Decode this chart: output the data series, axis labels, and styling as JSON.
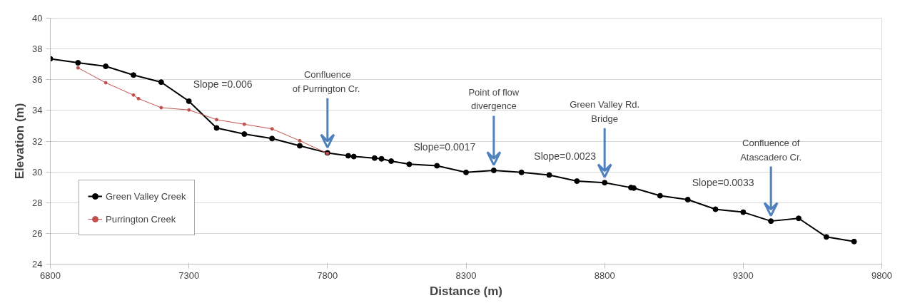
{
  "chart_data": {
    "type": "line",
    "xlabel": "Distance (m)",
    "ylabel": "Elevation (m)",
    "xlim": [
      6800,
      9800
    ],
    "xticks": [
      6800,
      7300,
      7800,
      8300,
      8800,
      9300,
      9800
    ],
    "ylim": [
      24,
      40
    ],
    "yticks": [
      24,
      26,
      28,
      30,
      32,
      34,
      36,
      38,
      40
    ],
    "grid": "y",
    "legend": "bottom left",
    "marker": "circle",
    "line_style": "solid",
    "series": [
      {
        "name": "Green Valley Creek",
        "color": "#000000",
        "x": [
          6800,
          6900,
          7000,
          7100,
          7200,
          7300,
          7400,
          7500,
          7600,
          7700,
          7800,
          7875,
          7895,
          7970,
          7995,
          8030,
          8095,
          8195,
          8300,
          8400,
          8500,
          8600,
          8700,
          8800,
          8895,
          8905,
          9000,
          9100,
          9200,
          9300,
          9400,
          9500,
          9600,
          9700
        ],
        "values": [
          37.36,
          37.1,
          36.87,
          36.3,
          35.84,
          34.6,
          32.86,
          32.46,
          32.17,
          31.7,
          31.24,
          31.05,
          31.0,
          30.9,
          30.85,
          30.7,
          30.5,
          30.4,
          29.97,
          30.1,
          29.97,
          29.8,
          29.4,
          29.3,
          28.98,
          28.95,
          28.45,
          28.2,
          27.57,
          27.38,
          26.8,
          26.98,
          25.77,
          25.47
        ]
      },
      {
        "name": "Purrington Creek",
        "color": "#c0504d",
        "x": [
          6900,
          7000,
          7100,
          7118,
          7200,
          7300,
          7400,
          7500,
          7600,
          7700,
          7800
        ],
        "values": [
          36.77,
          35.8,
          35.0,
          34.77,
          34.18,
          34.03,
          33.4,
          33.1,
          32.8,
          32.03,
          31.2
        ]
      }
    ],
    "annotations": [
      {
        "text": "Slope =0.006",
        "x": 7300,
        "y": 34.6
      },
      {
        "text": "Slope=0.0017",
        "x": 8095,
        "y": 30.5
      },
      {
        "text": "Slope=0.0023",
        "x": 8530,
        "y": 29.91
      },
      {
        "text": "Slope=0.0033",
        "x": 9100,
        "y": 28.2
      },
      {
        "text": "Confluence\nof Purrington  Cr.",
        "x": 7800,
        "y": 31.24
      },
      {
        "text": "Point of flow\ndivergence",
        "x": 8400,
        "y": 30.1
      },
      {
        "text": "Green Valley Rd.\nBridge",
        "x": 8800,
        "y": 29.3
      },
      {
        "text": "Confluence of\nAtascadero Cr.",
        "x": 9400,
        "y": 26.8
      }
    ]
  }
}
